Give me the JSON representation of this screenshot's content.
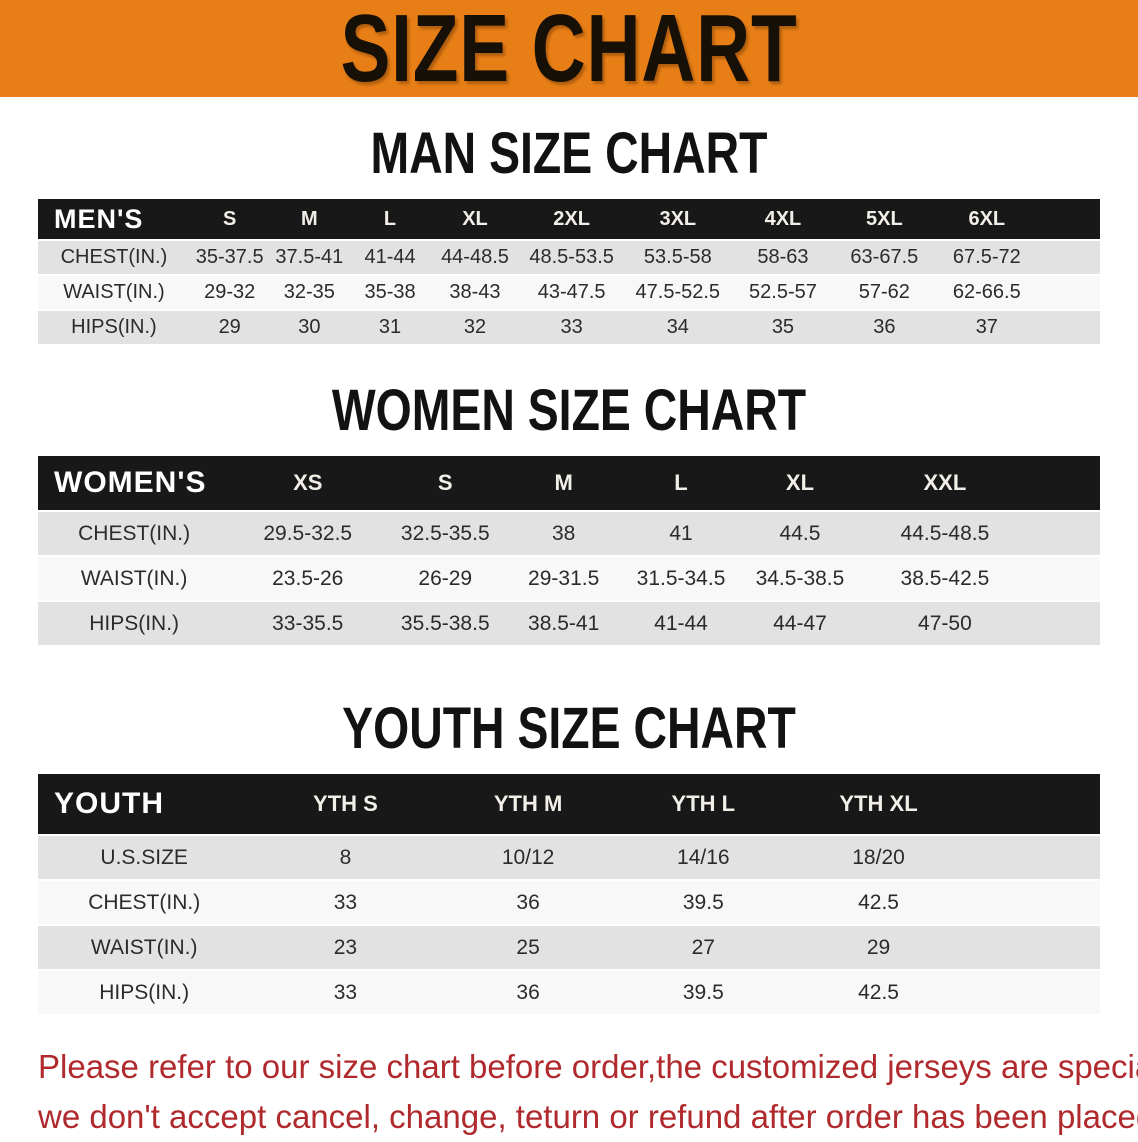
{
  "banner": {
    "title": "SIZE CHART"
  },
  "sections": [
    {
      "heading": "MAN SIZE CHART",
      "corner_label": "MEN'S",
      "columns": [
        "S",
        "M",
        "L",
        "XL",
        "2XL",
        "3XL",
        "4XL",
        "5XL",
        "6XL"
      ],
      "rows": [
        {
          "label": "CHEST(IN.)",
          "values": [
            "35-37.5",
            "37.5-41",
            "41-44",
            "44-48.5",
            "48.5-53.5",
            "53.5-58",
            "58-63",
            "63-67.5",
            "67.5-72"
          ]
        },
        {
          "label": "WAIST(IN.)",
          "values": [
            "29-32",
            "32-35",
            "35-38",
            "38-43",
            "43-47.5",
            "47.5-52.5",
            "52.5-57",
            "57-62",
            "62-66.5"
          ]
        },
        {
          "label": "HIPS(IN.)",
          "values": [
            "29",
            "30",
            "31",
            "32",
            "33",
            "34",
            "35",
            "36",
            "37"
          ]
        }
      ]
    },
    {
      "heading": "WOMEN SIZE CHART",
      "corner_label": "WOMEN'S",
      "columns": [
        "XS",
        "S",
        "M",
        "L",
        "XL",
        "XXL"
      ],
      "rows": [
        {
          "label": "CHEST(IN.)",
          "values": [
            "29.5-32.5",
            "32.5-35.5",
            "38",
            "41",
            "44.5",
            "44.5-48.5"
          ]
        },
        {
          "label": "WAIST(IN.)",
          "values": [
            "23.5-26",
            "26-29",
            "29-31.5",
            "31.5-34.5",
            "34.5-38.5",
            "38.5-42.5"
          ]
        },
        {
          "label": "HIPS(IN.)",
          "values": [
            "33-35.5",
            "35.5-38.5",
            "38.5-41",
            "41-44",
            "44-47",
            "47-50"
          ]
        }
      ]
    },
    {
      "heading": "YOUTH SIZE CHART",
      "corner_label": "YOUTH",
      "columns": [
        "YTH S",
        "YTH M",
        "YTH L",
        "YTH XL"
      ],
      "rows": [
        {
          "label": "U.S.SIZE",
          "values": [
            "8",
            "10/12",
            "14/16",
            "18/20"
          ]
        },
        {
          "label": "CHEST(IN.)",
          "values": [
            "33",
            "36",
            "39.5",
            "42.5"
          ]
        },
        {
          "label": "WAIST(IN.)",
          "values": [
            "23",
            "25",
            "27",
            "29"
          ]
        },
        {
          "label": "HIPS(IN.)",
          "values": [
            "33",
            "36",
            "39.5",
            "42.5"
          ]
        }
      ]
    }
  ],
  "footer": {
    "line1": "Please refer to our size chart before order,the customized jerseys are special products,",
    "line2": "we don't accept cancel, change, teturn or refund after order has been placed!"
  },
  "colors": {
    "banner_bg": "#e87e16",
    "heading_black": "#121212",
    "table_header_bg": "#181818",
    "table_header_text": "#ffffff",
    "row_gray": "#e2e2e2",
    "row_light": "#f8f8f8",
    "cell_text": "#2b2b2b",
    "footer_red": "#b0292c"
  }
}
